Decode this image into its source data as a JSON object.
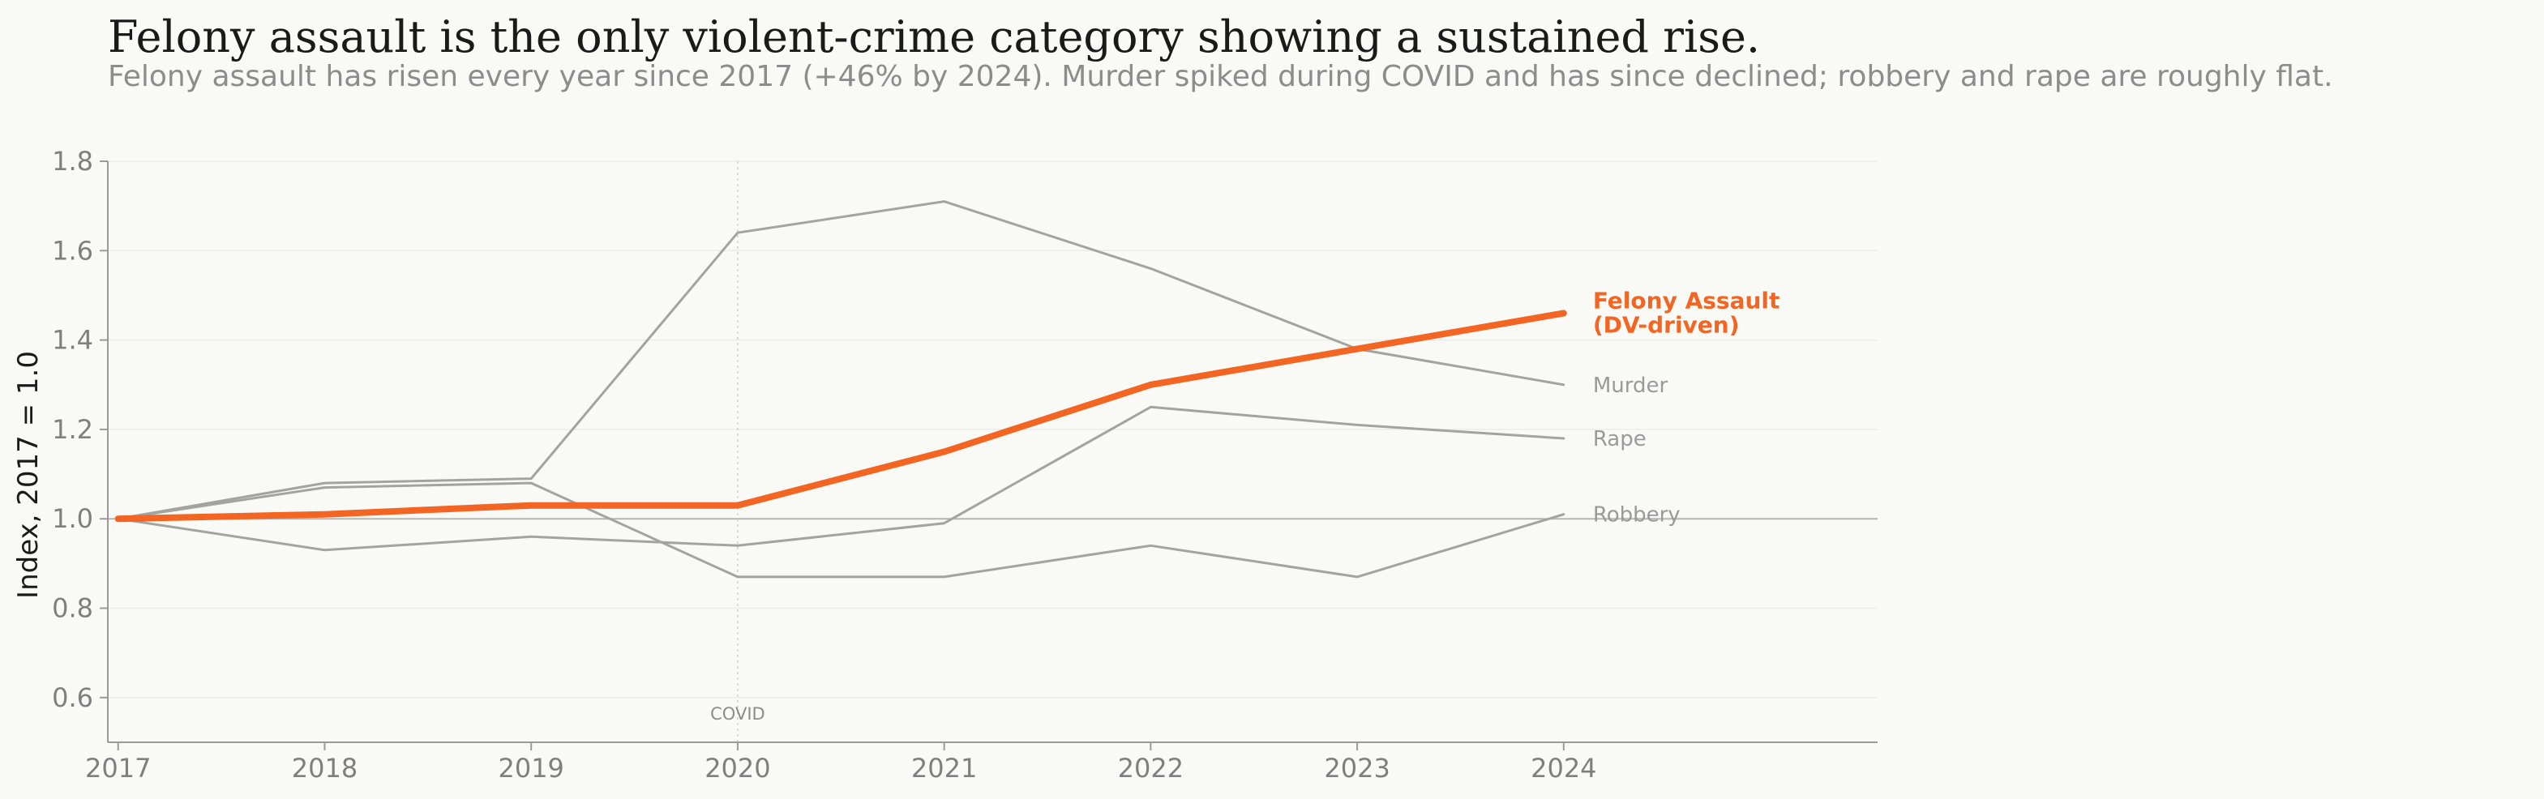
{
  "colors": {
    "background": "#f9f9f6",
    "highlight": "#f26522",
    "muted_series": "#a3a3a0",
    "grid": "#ececea",
    "axis": "#9a9a9a",
    "baseline": "#b5b5b2"
  },
  "chart_data": {
    "type": "line",
    "title": "Felony assault is the only violent-crime category showing a sustained rise.",
    "subtitle": "Felony assault has risen every year since 2017 (+46% by 2024). Murder spiked during COVID and has since declined; robbery and rape are roughly flat.",
    "ylabel": "Index, 2017 = 1.0",
    "xlabel": "",
    "x": [
      2017,
      2018,
      2019,
      2020,
      2021,
      2022,
      2023,
      2024
    ],
    "x_tick_labels": [
      "2017",
      "2018",
      "2019",
      "2020",
      "2021",
      "2022",
      "2023",
      "2024"
    ],
    "xlim": [
      2016.95,
      2025.52
    ],
    "ylim": [
      0.5,
      1.8
    ],
    "y_ticks": [
      0.6,
      0.8,
      1.0,
      1.2,
      1.4,
      1.6,
      1.8
    ],
    "y_tick_labels": [
      "0.6",
      "0.8",
      "1.0",
      "1.2",
      "1.4",
      "1.6",
      "1.8"
    ],
    "grid": true,
    "legend": "direct-labels-right",
    "baseline": 1.0,
    "series": [
      {
        "name": "Murder",
        "label_lines": [
          "Murder"
        ],
        "highlight": false,
        "values": [
          1.0,
          1.08,
          1.09,
          1.64,
          1.71,
          1.56,
          1.38,
          1.3
        ]
      },
      {
        "name": "Robbery",
        "label_lines": [
          "Robbery"
        ],
        "highlight": false,
        "values": [
          1.0,
          1.07,
          1.08,
          0.87,
          0.87,
          0.94,
          0.87,
          1.01
        ]
      },
      {
        "name": "Rape",
        "label_lines": [
          "Rape"
        ],
        "highlight": false,
        "values": [
          1.0,
          0.93,
          0.96,
          0.94,
          0.99,
          1.25,
          1.21,
          1.18
        ]
      },
      {
        "name": "Felony Assault (DV-driven)",
        "label_lines": [
          "Felony Assault",
          "(DV-driven)"
        ],
        "highlight": true,
        "values": [
          1.0,
          1.01,
          1.03,
          1.03,
          1.15,
          1.3,
          1.38,
          1.46
        ]
      }
    ],
    "annotations": [
      {
        "x": 2020,
        "text": "COVID"
      }
    ]
  }
}
